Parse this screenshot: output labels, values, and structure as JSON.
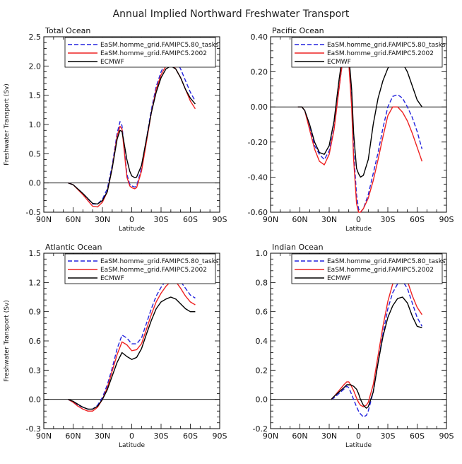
{
  "title": "Annual Implied Northward Freshwater Transport",
  "chart_data": [
    {
      "type": "line",
      "id": "total",
      "title": "Total Ocean",
      "xlabel": "Latitude",
      "ylabel": "Freshwater Transport (Sv)",
      "xlim": [
        90,
        -90
      ],
      "ylim": [
        -0.5,
        2.5
      ],
      "xticks": [
        90,
        60,
        30,
        0,
        -30,
        -60,
        -90
      ],
      "xtick_labels": [
        "90N",
        "60N",
        "30N",
        "0",
        "30S",
        "60S",
        "90S"
      ],
      "yticks": [
        -0.5,
        0.0,
        0.5,
        1.0,
        1.5,
        2.0,
        2.5
      ],
      "ytick_labels": [
        "-0.5",
        "0.0",
        "0.5",
        "1.0",
        "1.5",
        "2.0",
        "2.5"
      ],
      "legend": [
        "EaSM.homme_grid.FAMIPC5.80_tasks",
        "EaSM.homme_grid.FAMIPC5.2002",
        "ECMWF"
      ],
      "series": [
        {
          "name": "EaSM.homme_grid.FAMIPC5.80_tasks",
          "color": "#2222dd",
          "style": "dashed",
          "x": [
            65,
            60,
            50,
            40,
            35,
            30,
            25,
            20,
            15,
            12,
            10,
            8,
            5,
            2,
            0,
            -3,
            -5,
            -10,
            -15,
            -20,
            -25,
            -30,
            -35,
            -40,
            -45,
            -50,
            -55,
            -60,
            -65
          ],
          "y": [
            0.0,
            -0.03,
            -0.18,
            -0.36,
            -0.36,
            -0.28,
            -0.1,
            0.3,
            0.85,
            1.05,
            0.98,
            0.65,
            0.15,
            -0.02,
            -0.05,
            -0.07,
            -0.05,
            0.25,
            0.75,
            1.25,
            1.65,
            1.9,
            2.07,
            2.15,
            2.1,
            1.95,
            1.75,
            1.55,
            1.4
          ]
        },
        {
          "name": "EaSM.homme_grid.FAMIPC5.2002",
          "color": "#ee2222",
          "style": "solid",
          "x": [
            65,
            60,
            50,
            40,
            35,
            30,
            25,
            20,
            15,
            12,
            10,
            8,
            5,
            2,
            0,
            -3,
            -5,
            -10,
            -15,
            -20,
            -25,
            -30,
            -35,
            -40,
            -45,
            -50,
            -55,
            -60,
            -65
          ],
          "y": [
            0.0,
            -0.03,
            -0.2,
            -0.4,
            -0.41,
            -0.33,
            -0.15,
            0.25,
            0.8,
            0.97,
            0.92,
            0.6,
            0.1,
            -0.05,
            -0.08,
            -0.1,
            -0.08,
            0.2,
            0.7,
            1.2,
            1.6,
            1.85,
            2.0,
            2.05,
            1.95,
            1.8,
            1.6,
            1.4,
            1.27
          ]
        },
        {
          "name": "ECMWF",
          "color": "#000000",
          "style": "solid",
          "x": [
            65,
            60,
            50,
            40,
            35,
            30,
            25,
            20,
            15,
            12,
            10,
            8,
            5,
            2,
            0,
            -3,
            -5,
            -10,
            -15,
            -20,
            -25,
            -30,
            -35,
            -40,
            -45,
            -50,
            -55,
            -60,
            -65
          ],
          "y": [
            0.0,
            -0.03,
            -0.18,
            -0.35,
            -0.36,
            -0.3,
            -0.15,
            0.25,
            0.75,
            0.9,
            0.88,
            0.7,
            0.4,
            0.2,
            0.12,
            0.09,
            0.1,
            0.3,
            0.75,
            1.2,
            1.55,
            1.8,
            1.95,
            2.0,
            1.95,
            1.8,
            1.6,
            1.45,
            1.35
          ]
        }
      ]
    },
    {
      "type": "line",
      "id": "pacific",
      "title": "Pacific Ocean",
      "xlabel": "Latitude",
      "ylabel": "",
      "xlim": [
        90,
        -90
      ],
      "ylim": [
        -0.6,
        0.4
      ],
      "xticks": [
        90,
        60,
        30,
        0,
        -30,
        -60,
        -90
      ],
      "xtick_labels": [
        "90N",
        "60N",
        "30N",
        "0",
        "30S",
        "60S",
        "90S"
      ],
      "yticks": [
        -0.6,
        -0.4,
        -0.2,
        0.0,
        0.2,
        0.4
      ],
      "ytick_labels": [
        "-0.60",
        "-0.40",
        "-0.20",
        "0.00",
        "0.20",
        "0.40"
      ],
      "legend": [
        "EaSM.homme_grid.FAMIPC5.80_tasks",
        "EaSM.homme_grid.FAMIPC5.2002",
        "ECMWF"
      ],
      "series": [
        {
          "name": "EaSM.homme_grid.FAMIPC5.80_tasks",
          "color": "#2222dd",
          "style": "dashed",
          "x": [
            62,
            58,
            55,
            50,
            45,
            40,
            35,
            30,
            25,
            20,
            15,
            12,
            10,
            7,
            5,
            2,
            0,
            -2,
            -5,
            -10,
            -15,
            -20,
            -25,
            -30,
            -35,
            -40,
            -45,
            -50,
            -55,
            -60,
            -65
          ],
          "y": [
            0.0,
            0.0,
            -0.02,
            -0.12,
            -0.22,
            -0.27,
            -0.3,
            -0.25,
            -0.12,
            0.1,
            0.32,
            0.36,
            0.28,
            0.05,
            -0.25,
            -0.5,
            -0.58,
            -0.6,
            -0.58,
            -0.5,
            -0.38,
            -0.26,
            -0.12,
            0.0,
            0.06,
            0.07,
            0.05,
            0.0,
            -0.06,
            -0.14,
            -0.24
          ]
        },
        {
          "name": "EaSM.homme_grid.FAMIPC5.2002",
          "color": "#ee2222",
          "style": "solid",
          "x": [
            62,
            58,
            55,
            50,
            45,
            40,
            35,
            30,
            25,
            20,
            15,
            12,
            10,
            7,
            5,
            2,
            0,
            -2,
            -5,
            -10,
            -15,
            -20,
            -25,
            -30,
            -35,
            -40,
            -45,
            -50,
            -55,
            -60,
            -65
          ],
          "y": [
            0.0,
            0.0,
            -0.02,
            -0.13,
            -0.24,
            -0.31,
            -0.33,
            -0.27,
            -0.13,
            0.1,
            0.32,
            0.33,
            0.25,
            0.0,
            -0.3,
            -0.55,
            -0.6,
            -0.6,
            -0.58,
            -0.52,
            -0.42,
            -0.3,
            -0.17,
            -0.05,
            0.0,
            0.0,
            -0.03,
            -0.08,
            -0.15,
            -0.23,
            -0.31
          ]
        },
        {
          "name": "ECMWF",
          "color": "#000000",
          "style": "solid",
          "x": [
            62,
            58,
            55,
            50,
            45,
            40,
            35,
            30,
            25,
            20,
            15,
            12,
            10,
            7,
            5,
            2,
            0,
            -2,
            -5,
            -10,
            -15,
            -20,
            -25,
            -30,
            -35,
            -40,
            -45,
            -50,
            -55,
            -60,
            -65
          ],
          "y": [
            0.0,
            0.0,
            -0.02,
            -0.1,
            -0.2,
            -0.26,
            -0.27,
            -0.22,
            -0.08,
            0.15,
            0.35,
            0.36,
            0.3,
            0.1,
            -0.15,
            -0.35,
            -0.38,
            -0.4,
            -0.39,
            -0.3,
            -0.1,
            0.05,
            0.15,
            0.22,
            0.26,
            0.27,
            0.25,
            0.2,
            0.12,
            0.04,
            0.0
          ]
        }
      ]
    },
    {
      "type": "line",
      "id": "atlantic",
      "title": "Atlantic Ocean",
      "xlabel": "Latitude",
      "ylabel": "Freshwater Transport (Sv)",
      "xlim": [
        90,
        -90
      ],
      "ylim": [
        -0.3,
        1.5
      ],
      "xticks": [
        90,
        60,
        30,
        0,
        -30,
        -60,
        -90
      ],
      "xtick_labels": [
        "90N",
        "60N",
        "30N",
        "0",
        "30S",
        "60S",
        "90S"
      ],
      "yticks": [
        -0.3,
        0.0,
        0.3,
        0.6,
        0.9,
        1.2,
        1.5
      ],
      "ytick_labels": [
        "-0.3",
        "0.0",
        "0.3",
        "0.6",
        "0.9",
        "1.2",
        "1.5"
      ],
      "legend": [
        "EaSM.homme_grid.FAMIPC5.80_tasks",
        "EaSM.homme_grid.FAMIPC5.2002",
        "ECMWF"
      ],
      "series": [
        {
          "name": "EaSM.homme_grid.FAMIPC5.80_tasks",
          "color": "#2222dd",
          "style": "dashed",
          "x": [
            65,
            60,
            55,
            50,
            45,
            40,
            35,
            30,
            25,
            20,
            15,
            10,
            5,
            0,
            -5,
            -10,
            -15,
            -20,
            -25,
            -30,
            -35,
            -40,
            -45,
            -50,
            -55,
            -60,
            -65
          ],
          "y": [
            0.0,
            -0.03,
            -0.06,
            -0.08,
            -0.1,
            -0.1,
            -0.06,
            0.02,
            0.15,
            0.32,
            0.52,
            0.66,
            0.63,
            0.57,
            0.57,
            0.63,
            0.78,
            0.93,
            1.06,
            1.15,
            1.22,
            1.27,
            1.27,
            1.21,
            1.14,
            1.07,
            1.04
          ]
        },
        {
          "name": "EaSM.homme_grid.FAMIPC5.2002",
          "color": "#ee2222",
          "style": "solid",
          "x": [
            65,
            60,
            55,
            50,
            45,
            40,
            35,
            30,
            25,
            20,
            15,
            10,
            5,
            0,
            -5,
            -10,
            -15,
            -20,
            -25,
            -30,
            -35,
            -40,
            -45,
            -50,
            -55,
            -60,
            -65
          ],
          "y": [
            0.0,
            -0.03,
            -0.07,
            -0.1,
            -0.12,
            -0.12,
            -0.08,
            0.0,
            0.12,
            0.29,
            0.46,
            0.59,
            0.56,
            0.5,
            0.51,
            0.57,
            0.72,
            0.87,
            1.0,
            1.09,
            1.16,
            1.21,
            1.21,
            1.14,
            1.06,
            1.0,
            0.97
          ]
        },
        {
          "name": "ECMWF",
          "color": "#000000",
          "style": "solid",
          "x": [
            65,
            60,
            55,
            50,
            45,
            40,
            35,
            30,
            25,
            20,
            15,
            10,
            5,
            0,
            -5,
            -10,
            -15,
            -20,
            -25,
            -30,
            -35,
            -40,
            -45,
            -50,
            -55,
            -60,
            -65
          ],
          "y": [
            0.0,
            -0.02,
            -0.05,
            -0.08,
            -0.1,
            -0.1,
            -0.07,
            0.0,
            0.1,
            0.24,
            0.38,
            0.48,
            0.44,
            0.41,
            0.43,
            0.52,
            0.67,
            0.81,
            0.93,
            1.0,
            1.03,
            1.05,
            1.03,
            0.98,
            0.93,
            0.9,
            0.9
          ]
        }
      ]
    },
    {
      "type": "line",
      "id": "indian",
      "title": "Indian Ocean",
      "xlabel": "Latitude",
      "ylabel": "",
      "xlim": [
        90,
        -90
      ],
      "ylim": [
        -0.2,
        1.0
      ],
      "xticks": [
        90,
        60,
        30,
        0,
        -30,
        -60,
        -90
      ],
      "xtick_labels": [
        "90N",
        "60N",
        "30N",
        "0",
        "30S",
        "60S",
        "90S"
      ],
      "yticks": [
        -0.2,
        0.0,
        0.2,
        0.4,
        0.6,
        0.8,
        1.0
      ],
      "ytick_labels": [
        "-0.2",
        "0.0",
        "0.2",
        "0.4",
        "0.6",
        "0.8",
        "1.0"
      ],
      "legend": [
        "EaSM.homme_grid.FAMIPC5.80_tasks",
        "EaSM.homme_grid.FAMIPC5.2002",
        "ECMWF"
      ],
      "series": [
        {
          "name": "EaSM.homme_grid.FAMIPC5.80_tasks",
          "color": "#2222dd",
          "style": "dashed",
          "x": [
            28,
            25,
            20,
            15,
            12,
            10,
            8,
            5,
            2,
            0,
            -2,
            -5,
            -8,
            -10,
            -15,
            -20,
            -25,
            -30,
            -35,
            -40,
            -45,
            -50,
            -55,
            -60,
            -65
          ],
          "y": [
            0.0,
            0.01,
            0.04,
            0.07,
            0.09,
            0.08,
            0.05,
            0.0,
            -0.05,
            -0.08,
            -0.1,
            -0.12,
            -0.11,
            -0.08,
            0.05,
            0.25,
            0.45,
            0.62,
            0.73,
            0.79,
            0.81,
            0.76,
            0.66,
            0.56,
            0.5
          ]
        },
        {
          "name": "EaSM.homme_grid.FAMIPC5.2002",
          "color": "#ee2222",
          "style": "solid",
          "x": [
            28,
            25,
            20,
            15,
            12,
            10,
            8,
            5,
            2,
            0,
            -2,
            -5,
            -8,
            -10,
            -15,
            -20,
            -25,
            -30,
            -35,
            -40,
            -45,
            -50,
            -55,
            -60,
            -65
          ],
          "y": [
            0.0,
            0.02,
            0.06,
            0.1,
            0.12,
            0.12,
            0.1,
            0.06,
            0.01,
            -0.02,
            -0.04,
            -0.05,
            -0.04,
            -0.02,
            0.1,
            0.3,
            0.5,
            0.67,
            0.79,
            0.85,
            0.86,
            0.81,
            0.71,
            0.63,
            0.58
          ]
        },
        {
          "name": "ECMWF",
          "color": "#000000",
          "style": "solid",
          "x": [
            28,
            25,
            20,
            15,
            12,
            10,
            8,
            5,
            2,
            0,
            -2,
            -5,
            -8,
            -10,
            -15,
            -20,
            -25,
            -30,
            -35,
            -40,
            -45,
            -50,
            -55,
            -60,
            -65
          ],
          "y": [
            0.0,
            0.02,
            0.05,
            0.08,
            0.1,
            0.1,
            0.1,
            0.09,
            0.07,
            0.04,
            0.0,
            -0.04,
            -0.06,
            -0.05,
            0.05,
            0.25,
            0.43,
            0.56,
            0.64,
            0.69,
            0.7,
            0.66,
            0.57,
            0.5,
            0.49
          ]
        }
      ]
    }
  ]
}
